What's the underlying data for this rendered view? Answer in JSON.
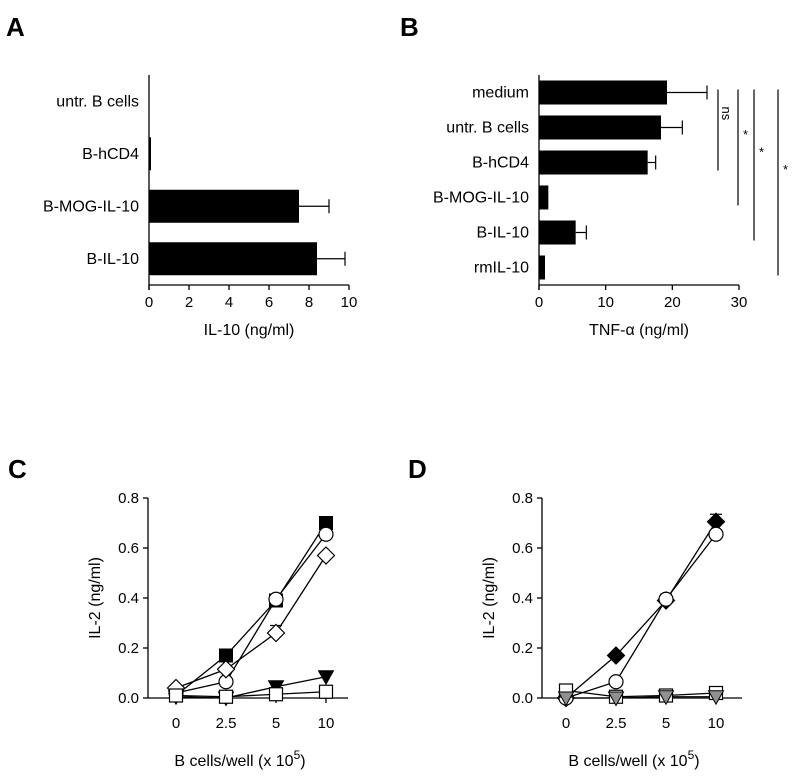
{
  "chart_data": [
    {
      "panel": "A",
      "type": "bar",
      "orientation": "horizontal",
      "categories": [
        "untr. B cells",
        "B-hCD4",
        "B-MOG-IL-10",
        "B-IL-10"
      ],
      "values": [
        0,
        0.1,
        7.5,
        8.4
      ],
      "errors": [
        0,
        0,
        1.5,
        1.4
      ],
      "xlabel": "IL-10 (ng/ml)",
      "xlim": [
        0,
        10
      ],
      "xticks": [
        "0",
        "2",
        "4",
        "6",
        "8",
        "10"
      ],
      "color": "#000000"
    },
    {
      "panel": "B",
      "type": "bar",
      "orientation": "horizontal",
      "categories": [
        "medium",
        "untr. B cells",
        "B-hCD4",
        "B-MOG-IL-10",
        "B-IL-10",
        "rmIL-10"
      ],
      "values": [
        19.2,
        18.3,
        16.3,
        1.4,
        5.5,
        0.9
      ],
      "errors": [
        6.0,
        3.2,
        1.2,
        0,
        1.6,
        0
      ],
      "xlabel": "TNF-α (ng/ml)",
      "xlim": [
        0,
        30
      ],
      "xticks": [
        "0",
        "10",
        "20",
        "30"
      ],
      "color": "#000000",
      "significance": [
        {
          "from": "medium",
          "to": "B-hCD4",
          "label": "ns"
        },
        {
          "from": "medium",
          "to": "B-MOG-IL-10",
          "label": "*"
        },
        {
          "from": "medium",
          "to": "B-IL-10",
          "label": "*"
        },
        {
          "from": "medium",
          "to": "rmIL-10",
          "label": "*"
        }
      ]
    },
    {
      "panel": "C",
      "type": "line",
      "categories": [
        "0",
        "2.5",
        "5",
        "10"
      ],
      "xlabel": "B cells/well (x 10",
      "xlabel_sup": "5",
      "xlabel_end": ")",
      "ylabel": "IL-2 (ng/ml)",
      "ylim": [
        0,
        0.8
      ],
      "yticks": [
        "0.0",
        "0.2",
        "0.4",
        "0.6",
        "0.8"
      ],
      "series": [
        {
          "marker": "square-filled",
          "values": [
            0.01,
            0.17,
            0.39,
            0.7
          ],
          "errors": [
            0,
            0,
            0.015,
            0.025
          ]
        },
        {
          "marker": "circle-open",
          "values": [
            0.02,
            0.065,
            0.395,
            0.655
          ],
          "errors": [
            0,
            0,
            0,
            0
          ]
        },
        {
          "marker": "diamond-open",
          "values": [
            0.04,
            0.115,
            0.26,
            0.57
          ],
          "errors": [
            0,
            0,
            0.03,
            0
          ]
        },
        {
          "marker": "triangle-down-filled",
          "values": [
            0.005,
            0.0,
            0.045,
            0.085
          ],
          "errors": [
            0,
            0,
            0,
            0
          ]
        },
        {
          "marker": "square-open",
          "values": [
            0.01,
            0.005,
            0.015,
            0.025
          ],
          "errors": [
            0,
            0,
            0,
            0
          ]
        }
      ]
    },
    {
      "panel": "D",
      "type": "line",
      "categories": [
        "0",
        "2.5",
        "5",
        "10"
      ],
      "xlabel": "B cells/well (x 10",
      "xlabel_sup": "5",
      "xlabel_end": ")",
      "ylabel": "IL-2 (ng/ml)",
      "ylim": [
        0,
        0.8
      ],
      "yticks": [
        "0.0",
        "0.2",
        "0.4",
        "0.6",
        "0.8"
      ],
      "series": [
        {
          "marker": "diamond-filled",
          "values": [
            0.0,
            0.17,
            0.39,
            0.705
          ],
          "errors": [
            0,
            0,
            0.025,
            0.03
          ]
        },
        {
          "marker": "circle-open",
          "values": [
            0.0,
            0.065,
            0.395,
            0.655
          ],
          "errors": [
            0,
            0,
            0,
            0
          ]
        },
        {
          "marker": "square-open",
          "values": [
            0.03,
            0.005,
            0.01,
            0.02
          ],
          "errors": [
            0,
            0,
            0,
            0
          ]
        },
        {
          "marker": "triangle-down-gray",
          "values": [
            0.0,
            0.0,
            0.005,
            0.005
          ],
          "errors": [
            0,
            0,
            0,
            0
          ]
        }
      ]
    }
  ],
  "panel_letters": [
    "A",
    "B",
    "C",
    "D"
  ],
  "marker_gray": "#909090"
}
